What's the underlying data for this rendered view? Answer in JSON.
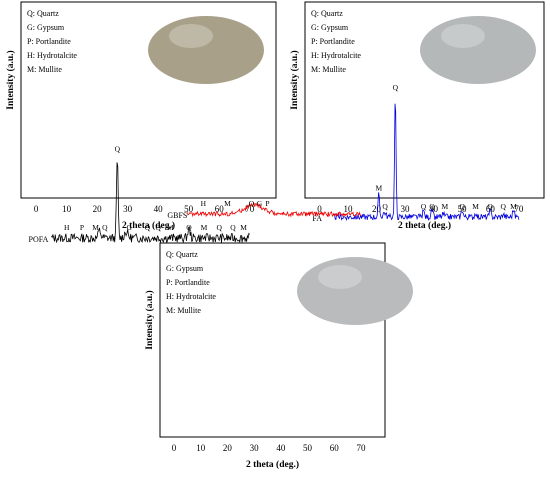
{
  "chart_data": [
    {
      "type": "line",
      "sample": "POFA",
      "xlabel": "2 theta (deg.)",
      "ylabel": "Intensity (a.u.)",
      "xlim": [
        -3,
        76
      ],
      "xticks": [
        0,
        10,
        20,
        30,
        40,
        50,
        60,
        70
      ],
      "line_color": "#000000",
      "baseline": 0.12,
      "noise": 0.03,
      "peaks": [
        {
          "x": 26.6,
          "h": 0.55,
          "w": 0.25
        },
        {
          "x": 20.8,
          "h": 0.05,
          "w": 0.4
        },
        {
          "x": 29.5,
          "h": 0.04,
          "w": 0.6
        },
        {
          "x": 50.1,
          "h": 0.06,
          "w": 0.4
        }
      ],
      "peak_labels": [
        {
          "text": "H",
          "x": 10
        },
        {
          "text": "P",
          "x": 15
        },
        {
          "text": "M",
          "x": 19.5
        },
        {
          "text": "Q",
          "x": 22.5
        },
        {
          "text": "Q",
          "x": 26.6,
          "high": true
        },
        {
          "text": "G",
          "x": 30.5
        },
        {
          "text": "Q",
          "x": 36.5
        },
        {
          "text": "Q",
          "x": 40
        },
        {
          "text": "M",
          "x": 44
        },
        {
          "text": "Q",
          "x": 50.1
        },
        {
          "text": "M",
          "x": 55
        },
        {
          "text": "Q",
          "x": 60
        },
        {
          "text": "Q",
          "x": 64.5
        },
        {
          "text": "M",
          "x": 68
        }
      ],
      "legend": [
        "Q: Quartz",
        "G: Gypsum",
        "P: Portlandite",
        "H: Hydrotalcite",
        "M: Mullite"
      ],
      "photo_color": "#a8a089"
    },
    {
      "type": "line",
      "sample": "FA",
      "xlabel": "2 theta (deg.)",
      "ylabel": "Intensity (a.u.)",
      "xlim": [
        -3,
        76
      ],
      "xticks": [
        0,
        10,
        20,
        30,
        40,
        50,
        60,
        70
      ],
      "line_color": "#0000dd",
      "baseline": 0.12,
      "noise": 0.02,
      "peaks": [
        {
          "x": 26.6,
          "h": 0.82,
          "w": 0.25
        },
        {
          "x": 20.8,
          "h": 0.15,
          "w": 0.25
        },
        {
          "x": 22.8,
          "h": 0.03,
          "w": 0.5
        },
        {
          "x": 36.5,
          "h": 0.04,
          "w": 0.3
        },
        {
          "x": 39.5,
          "h": 0.05,
          "w": 0.3
        },
        {
          "x": 43.5,
          "h": 0.02,
          "w": 0.3
        },
        {
          "x": 50.1,
          "h": 0.05,
          "w": 0.3
        },
        {
          "x": 54.8,
          "h": 0.03,
          "w": 0.3
        },
        {
          "x": 59.9,
          "h": 0.04,
          "w": 0.3
        },
        {
          "x": 64.5,
          "h": 0.02,
          "w": 0.3
        },
        {
          "x": 68.1,
          "h": 0.05,
          "w": 0.3
        }
      ],
      "peak_labels": [
        {
          "text": "M",
          "x": 20.8,
          "high": true
        },
        {
          "text": "Q",
          "x": 23
        },
        {
          "text": "Q",
          "x": 26.6,
          "high": true
        },
        {
          "text": "Q",
          "x": 36.5
        },
        {
          "text": "Q",
          "x": 39.5
        },
        {
          "text": "M",
          "x": 44
        },
        {
          "text": "Q",
          "x": 50.1
        },
        {
          "text": "M",
          "x": 54.8
        },
        {
          "text": "Q",
          "x": 59.9
        },
        {
          "text": "Q",
          "x": 64.5
        },
        {
          "text": "M",
          "x": 68.1
        }
      ],
      "legend": [
        "Q: Quartz",
        "G: Gypsum",
        "P: Portlandite",
        "H: Hydrotalcite",
        "M: Mullite"
      ],
      "photo_color": "#b4b8b8"
    },
    {
      "type": "line",
      "sample": "GBFS",
      "xlabel": "2 theta (deg.)",
      "ylabel": "Intensity (a.u.)",
      "xlim": [
        -3,
        76
      ],
      "xticks": [
        0,
        10,
        20,
        30,
        40,
        50,
        60,
        70
      ],
      "line_color": "#ee0000",
      "baseline": 0.12,
      "noise": 0.015,
      "peaks": [
        {
          "x": 30,
          "h": 0.06,
          "w": 3.5
        }
      ],
      "peak_labels": [
        {
          "text": "H",
          "x": 11
        },
        {
          "text": "M",
          "x": 20
        },
        {
          "text": "Q",
          "x": 29
        },
        {
          "text": "G",
          "x": 32
        },
        {
          "text": "P",
          "x": 35
        }
      ],
      "legend": [
        "Q: Quartz",
        "G: Gypsum",
        "P: Portlandite",
        "H: Hydrotalcite",
        "M: Mullite"
      ],
      "photo_color": "#b9bbbd"
    }
  ]
}
